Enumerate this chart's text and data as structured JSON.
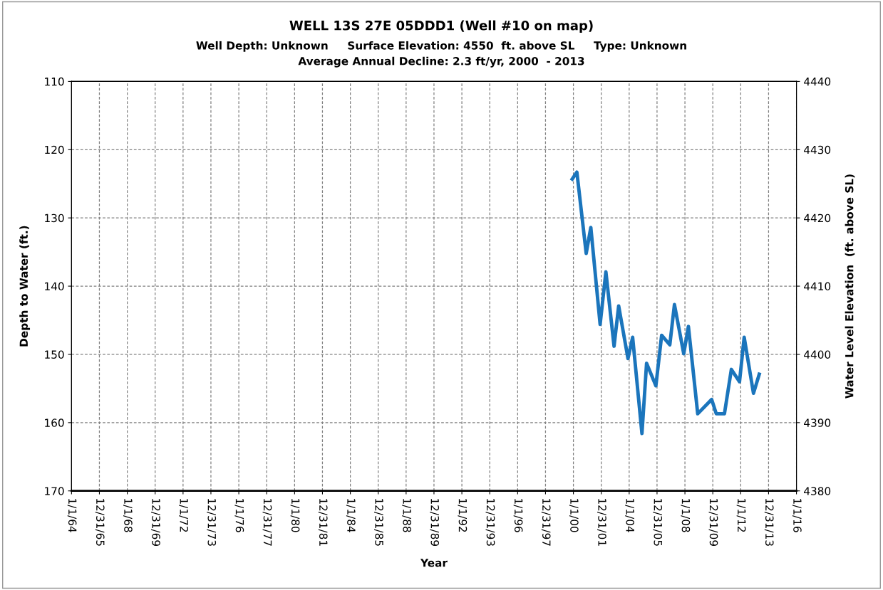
{
  "chart_data": {
    "type": "line",
    "title": "WELL 13S 27E 05DDD1 (Well #10 on map)",
    "subtitle": "Well Depth: Unknown     Surface Elevation: 4550  ft. above SL     Type: Unknown\nAverage Annual Decline: 2.3 ft/yr, 2000  - 2013",
    "xlabel": "Year",
    "ylabel": "Depth to Water (ft.)",
    "y2label": "Water Level Elevation  (ft. above SL)",
    "x": [
      "1999-12",
      "2000-04",
      "2000-12",
      "2001-04",
      "2001-12",
      "2002-05",
      "2002-12",
      "2003-04",
      "2003-12",
      "2004-04",
      "2004-12",
      "2005-04",
      "2005-12",
      "2006-05",
      "2006-12",
      "2007-04",
      "2007-12",
      "2008-04",
      "2008-12",
      "2009-12",
      "2010-04",
      "2010-11",
      "2011-05",
      "2011-12",
      "2012-04",
      "2012-12",
      "2013-05"
    ],
    "series": [
      {
        "color": "#1b75bc",
        "values": [
          124.3,
          123.3,
          135.2,
          131.4,
          145.6,
          137.9,
          148.8,
          142.9,
          150.6,
          147.5,
          161.6,
          151.3,
          154.6,
          147.2,
          148.6,
          142.7,
          149.9,
          145.9,
          158.7,
          156.6,
          158.7,
          158.7,
          152.2,
          154.0,
          147.5,
          155.7,
          152.9
        ]
      }
    ],
    "xlim": [
      "1964-01-01",
      "2016-01-01"
    ],
    "xticks": [
      {
        "value": "1964-01-01",
        "label": "1/1/64"
      },
      {
        "value": "1965-12-31",
        "label": "12/31/65"
      },
      {
        "value": "1968-01-01",
        "label": "1/1/68"
      },
      {
        "value": "1969-12-31",
        "label": "12/31/69"
      },
      {
        "value": "1972-01-01",
        "label": "1/1/72"
      },
      {
        "value": "1973-12-31",
        "label": "12/31/73"
      },
      {
        "value": "1976-01-01",
        "label": "1/1/76"
      },
      {
        "value": "1977-12-31",
        "label": "12/31/77"
      },
      {
        "value": "1980-01-01",
        "label": "1/1/80"
      },
      {
        "value": "1981-12-31",
        "label": "12/31/81"
      },
      {
        "value": "1984-01-01",
        "label": "1/1/84"
      },
      {
        "value": "1985-12-31",
        "label": "12/31/85"
      },
      {
        "value": "1988-01-01",
        "label": "1/1/88"
      },
      {
        "value": "1989-12-31",
        "label": "12/31/89"
      },
      {
        "value": "1992-01-01",
        "label": "1/1/92"
      },
      {
        "value": "1993-12-31",
        "label": "12/31/93"
      },
      {
        "value": "1996-01-01",
        "label": "1/1/96"
      },
      {
        "value": "1997-12-31",
        "label": "12/31/97"
      },
      {
        "value": "2000-01-01",
        "label": "1/1/00"
      },
      {
        "value": "2001-12-31",
        "label": "12/31/01"
      },
      {
        "value": "2004-01-01",
        "label": "1/1/04"
      },
      {
        "value": "2005-12-31",
        "label": "12/31/05"
      },
      {
        "value": "2008-01-01",
        "label": "1/1/08"
      },
      {
        "value": "2009-12-31",
        "label": "12/31/09"
      },
      {
        "value": "2012-01-01",
        "label": "1/1/12"
      },
      {
        "value": "2013-12-31",
        "label": "12/31/13"
      },
      {
        "value": "2016-01-01",
        "label": "1/1/16"
      }
    ],
    "ylim": [
      170,
      110
    ],
    "yticks": [
      110,
      120,
      130,
      140,
      150,
      160,
      170
    ],
    "y2lim": [
      4380,
      4440
    ],
    "y2ticks": [
      4380,
      4390,
      4400,
      4410,
      4420,
      4430,
      4440
    ],
    "grid": true,
    "legend": false,
    "marker": "none",
    "line_style": "solid"
  }
}
